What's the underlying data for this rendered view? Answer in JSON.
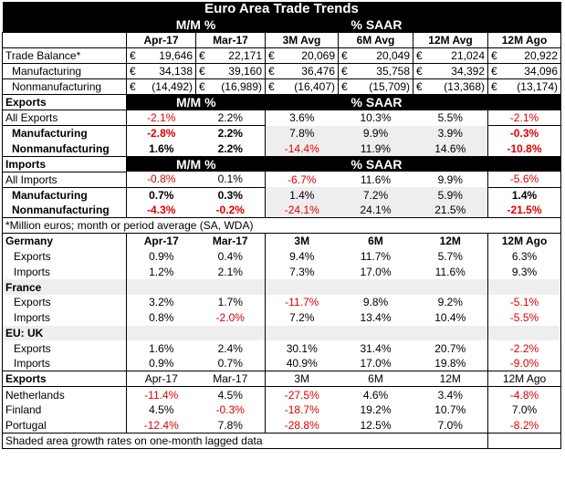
{
  "title": "Euro Area Trade Trends",
  "section_mm": "M/M %",
  "section_saar": "% SAAR",
  "col_headers": [
    "Apr-17",
    "Mar-17",
    "3M Avg",
    "6M Avg",
    "12M Avg",
    "12M Ago"
  ],
  "currency": "€",
  "balance_rows": [
    {
      "label": "Trade Balance*",
      "values": [
        "19,646",
        "22,171",
        "20,069",
        "20,049",
        "21,024",
        "20,922"
      ]
    },
    {
      "label": "Manufacturing",
      "values": [
        "34,138",
        "39,160",
        "36,476",
        "35,758",
        "34,392",
        "34,096"
      ]
    },
    {
      "label": "Nonmanufacturing",
      "values": [
        "(14,492)",
        "(16,989)",
        "(16,407)",
        "(15,709)",
        "(13,368)",
        "(13,174)"
      ]
    }
  ],
  "exports_header": "Exports",
  "exports_rows": [
    {
      "label": "All Exports",
      "values": [
        "-2.1%",
        "2.2%",
        "3.6%",
        "10.3%",
        "5.5%",
        "-2.1%"
      ]
    },
    {
      "label": "Manufacturing",
      "values": [
        "-2.8%",
        "2.2%",
        "7.8%",
        "9.9%",
        "3.9%",
        "-0.3%"
      ]
    },
    {
      "label": "Nonmanufacturing",
      "values": [
        "1.6%",
        "2.2%",
        "-14.4%",
        "11.9%",
        "14.6%",
        "-10.8%"
      ]
    }
  ],
  "imports_header": "Imports",
  "imports_rows": [
    {
      "label": "All Imports",
      "values": [
        "-0.8%",
        "0.1%",
        "-6.7%",
        "11.6%",
        "9.9%",
        "-5.6%"
      ]
    },
    {
      "label": "Manufacturing",
      "values": [
        "0.7%",
        "0.3%",
        "1.4%",
        "7.2%",
        "5.9%",
        "1.4%"
      ]
    },
    {
      "label": "Nonmanufacturing",
      "values": [
        "-4.3%",
        "-0.2%",
        "-24.1%",
        "24.1%",
        "21.5%",
        "-21.5%"
      ]
    }
  ],
  "footnote": "*Million euros; month or period average (SA, WDA)",
  "country_headers": [
    "Apr-17",
    "Mar-17",
    "3M",
    "6M",
    "12M",
    "12M Ago"
  ],
  "countries": [
    {
      "name": "Germany",
      "rows": [
        {
          "label": "Exports",
          "values": [
            "0.9%",
            "0.4%",
            "9.4%",
            "11.7%",
            "5.7%",
            "6.3%"
          ]
        },
        {
          "label": "Imports",
          "values": [
            "1.2%",
            "2.1%",
            "7.3%",
            "17.0%",
            "11.6%",
            "9.3%"
          ]
        }
      ]
    },
    {
      "name": "France",
      "rows": [
        {
          "label": "Exports",
          "values": [
            "3.2%",
            "1.7%",
            "-11.7%",
            "9.8%",
            "9.2%",
            "-5.1%"
          ]
        },
        {
          "label": "Imports",
          "values": [
            "0.8%",
            "-2.0%",
            "7.2%",
            "13.4%",
            "10.4%",
            "-5.5%"
          ]
        }
      ]
    },
    {
      "name": "EU: UK",
      "rows": [
        {
          "label": "Exports",
          "values": [
            "1.6%",
            "2.4%",
            "30.1%",
            "31.4%",
            "20.7%",
            "-2.2%"
          ]
        },
        {
          "label": "Imports",
          "values": [
            "0.9%",
            "0.7%",
            "40.9%",
            "17.0%",
            "19.8%",
            "-9.0%"
          ]
        }
      ]
    }
  ],
  "exports2_header": "Exports",
  "exports2_cols": [
    "Apr-17",
    "Mar-17",
    "3M",
    "6M",
    "12M",
    "12M Ago"
  ],
  "exports2_rows": [
    {
      "label": "Netherlands",
      "values": [
        "-11.4%",
        "4.5%",
        "-27.5%",
        "4.6%",
        "3.4%",
        "-4.8%"
      ]
    },
    {
      "label": "Finland",
      "values": [
        "4.5%",
        "-0.3%",
        "-18.7%",
        "19.2%",
        "10.7%",
        "7.0%"
      ]
    },
    {
      "label": "Portugal",
      "values": [
        "-12.4%",
        "7.8%",
        "-28.8%",
        "12.5%",
        "7.0%",
        "-8.2%"
      ]
    }
  ],
  "bottom_note": "Shaded area growth rates on one-month lagged data",
  "colors": {
    "negative": "#e00000",
    "header_bg": "#000000",
    "shade": "#eeeeee"
  }
}
